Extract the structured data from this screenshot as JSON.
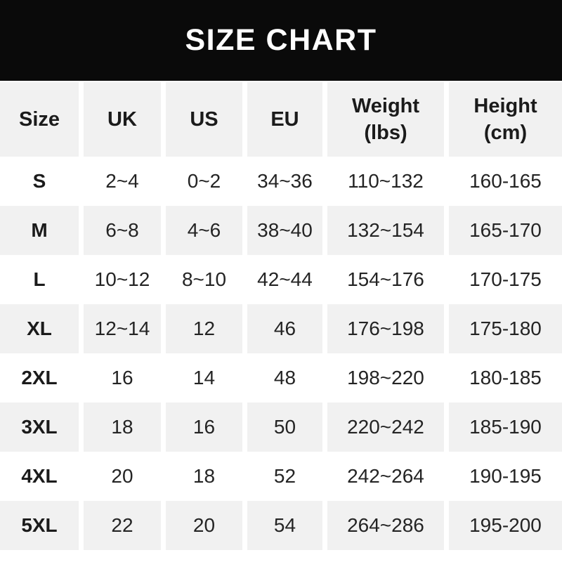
{
  "title": "SIZE CHART",
  "colors": {
    "title_bar_bg": "#0a0a0a",
    "title_text": "#ffffff",
    "row_alt_bg": "#f1f1f1",
    "row_bg": "#ffffff",
    "text": "#242424"
  },
  "chart_data": {
    "type": "table",
    "title": "SIZE CHART",
    "columns": [
      {
        "label": "Size"
      },
      {
        "label": "UK"
      },
      {
        "label": "US"
      },
      {
        "label": "EU"
      },
      {
        "label": "Weight",
        "sub": "(lbs)"
      },
      {
        "label": "Height",
        "sub": "(cm)"
      }
    ],
    "rows": [
      {
        "cells": [
          "S",
          "2~4",
          "0~2",
          "34~36",
          "110~132",
          "160-165"
        ]
      },
      {
        "cells": [
          "M",
          "6~8",
          "4~6",
          "38~40",
          "132~154",
          "165-170"
        ]
      },
      {
        "cells": [
          "L",
          "10~12",
          "8~10",
          "42~44",
          "154~176",
          "170-175"
        ]
      },
      {
        "cells": [
          "XL",
          "12~14",
          "12",
          "46",
          "176~198",
          "175-180"
        ]
      },
      {
        "cells": [
          "2XL",
          "16",
          "14",
          "48",
          "198~220",
          "180-185"
        ]
      },
      {
        "cells": [
          "3XL",
          "18",
          "16",
          "50",
          "220~242",
          "185-190"
        ]
      },
      {
        "cells": [
          "4XL",
          "20",
          "18",
          "52",
          "242~264",
          "190-195"
        ]
      },
      {
        "cells": [
          "5XL",
          "22",
          "20",
          "54",
          "264~286",
          "195-200"
        ]
      }
    ]
  }
}
